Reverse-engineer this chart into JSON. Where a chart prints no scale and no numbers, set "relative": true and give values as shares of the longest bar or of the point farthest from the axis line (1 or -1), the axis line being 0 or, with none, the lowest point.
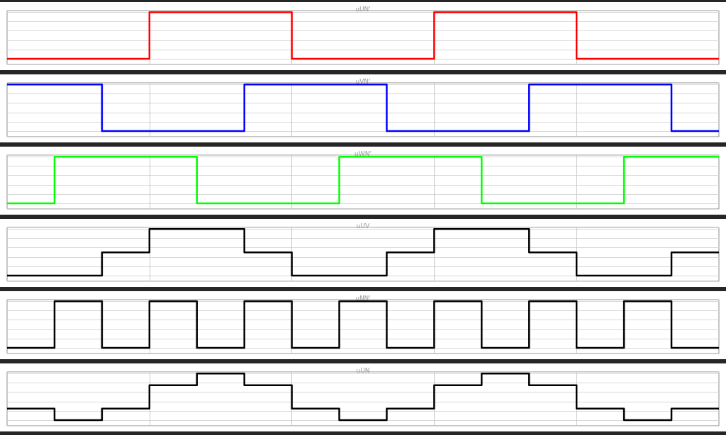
{
  "chart_data": [
    {
      "type": "step",
      "title": "uUN'",
      "relative": true,
      "grid": true,
      "categories": [
        null,
        null,
        null,
        null,
        null,
        null,
        null,
        null,
        null,
        null,
        null,
        null,
        null,
        null,
        null,
        null
      ],
      "series": [
        {
          "color": "#ff0000",
          "values": [
            0,
            0,
            0,
            1,
            1,
            1,
            0,
            0,
            0,
            1,
            1,
            1,
            0,
            0,
            0,
            0
          ]
        }
      ]
    },
    {
      "type": "step",
      "title": "uVN'",
      "relative": true,
      "grid": true,
      "categories": [
        null,
        null,
        null,
        null,
        null,
        null,
        null,
        null,
        null,
        null,
        null,
        null,
        null,
        null,
        null,
        null
      ],
      "series": [
        {
          "color": "#0000ff",
          "values": [
            1,
            1,
            0,
            0,
            0,
            1,
            1,
            1,
            0,
            0,
            0,
            1,
            1,
            1,
            0,
            0
          ]
        }
      ]
    },
    {
      "type": "step",
      "title": "uWN'",
      "relative": true,
      "grid": true,
      "categories": [
        null,
        null,
        null,
        null,
        null,
        null,
        null,
        null,
        null,
        null,
        null,
        null,
        null,
        null,
        null,
        null
      ],
      "series": [
        {
          "color": "#00ff00",
          "values": [
            0,
            1,
            1,
            1,
            0,
            0,
            0,
            1,
            1,
            1,
            0,
            0,
            0,
            1,
            1,
            1
          ]
        }
      ]
    },
    {
      "type": "step",
      "title": "uUV",
      "relative": true,
      "grid": true,
      "categories": [
        null,
        null,
        null,
        null,
        null,
        null,
        null,
        null,
        null,
        null,
        null,
        null,
        null,
        null,
        null,
        null
      ],
      "series": [
        {
          "color": "#000000",
          "values": [
            0,
            0,
            0.5,
            1,
            1,
            0.5,
            0,
            0,
            0.5,
            1,
            1,
            0.5,
            0,
            0,
            0.5,
            0.5
          ]
        }
      ]
    },
    {
      "type": "step",
      "title": "uNN'",
      "relative": true,
      "grid": true,
      "categories": [
        null,
        null,
        null,
        null,
        null,
        null,
        null,
        null,
        null,
        null,
        null,
        null,
        null,
        null,
        null,
        null
      ],
      "series": [
        {
          "color": "#000000",
          "values": [
            0,
            1,
            0,
            1,
            0,
            1,
            0,
            1,
            0,
            1,
            0,
            1,
            0,
            1,
            0,
            0
          ]
        }
      ]
    },
    {
      "type": "step",
      "title": "uUN",
      "relative": true,
      "grid": true,
      "categories": [
        null,
        null,
        null,
        null,
        null,
        null,
        null,
        null,
        null,
        null,
        null,
        null,
        null,
        null,
        null,
        null
      ],
      "series": [
        {
          "color": "#000000",
          "values": [
            0.25,
            0,
            0.25,
            0.75,
            1,
            0.75,
            0.25,
            0,
            0.25,
            0.75,
            1,
            0.75,
            0.25,
            0,
            0.25,
            0.25
          ]
        }
      ]
    }
  ]
}
